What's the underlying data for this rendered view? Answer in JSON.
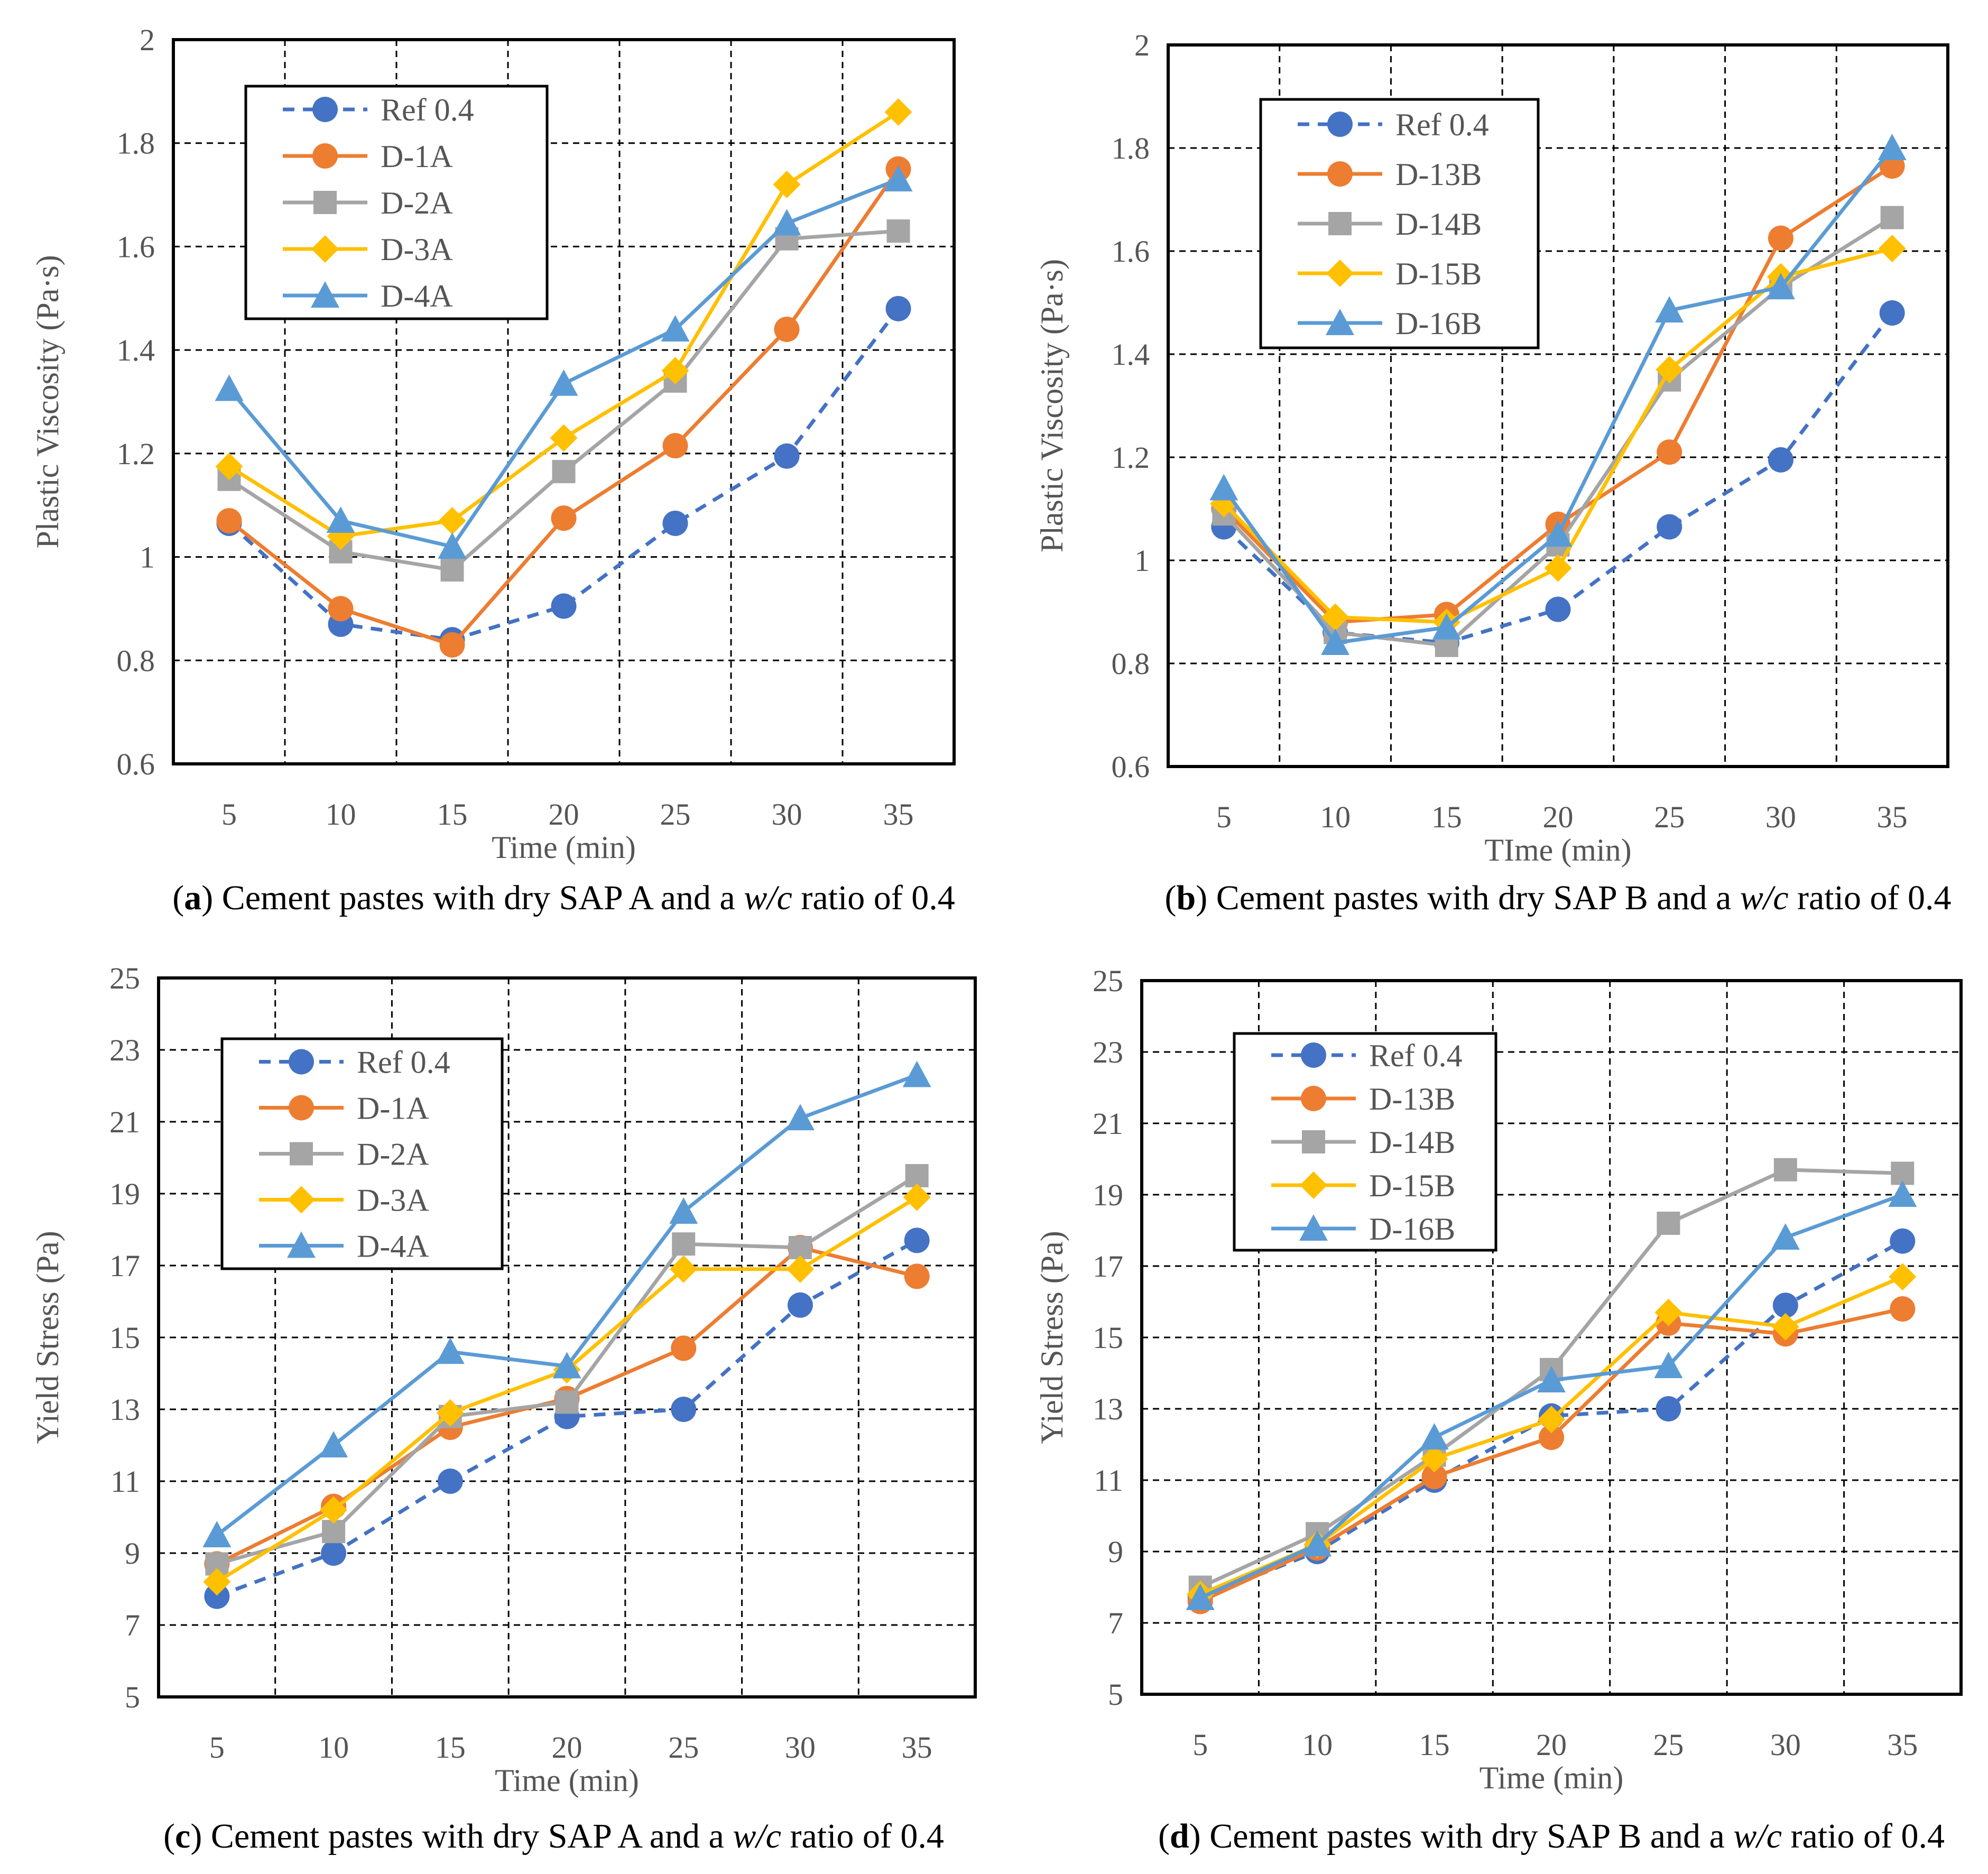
{
  "colors": {
    "ref": "#4472C4",
    "d1": "#ED7D31",
    "d2": "#A5A5A5",
    "d3": "#FFC000",
    "d4": "#5B9BD5"
  },
  "chart_data": [
    {
      "id": "a",
      "type": "line",
      "xlabel": "Time (min)",
      "ylabel": "Plastic Viscosity (Pa·s)",
      "categories": [
        "5",
        "10",
        "15",
        "20",
        "25",
        "30",
        "35"
      ],
      "ylim": [
        0.6,
        2.0
      ],
      "yticks": [
        "0.6",
        "0.8",
        "1",
        "1.2",
        "1.4",
        "1.6",
        "1.8",
        "2"
      ],
      "grid": true,
      "legend_position": "top-left",
      "series": [
        {
          "name": "Ref 0.4",
          "marker": "circle",
          "dashed": true,
          "values": [
            1.065,
            0.87,
            0.84,
            0.905,
            1.065,
            1.195,
            1.48
          ]
        },
        {
          "name": "D-1A",
          "marker": "circle",
          "dashed": false,
          "values": [
            1.07,
            0.9,
            0.83,
            1.075,
            1.215,
            1.44,
            1.75
          ]
        },
        {
          "name": "D-2A",
          "marker": "square",
          "dashed": false,
          "values": [
            1.15,
            1.01,
            0.975,
            1.165,
            1.34,
            1.615,
            1.63
          ]
        },
        {
          "name": "D-3A",
          "marker": "diamond",
          "dashed": false,
          "values": [
            1.175,
            1.04,
            1.07,
            1.23,
            1.36,
            1.72,
            1.86
          ]
        },
        {
          "name": "D-4A",
          "marker": "triangle",
          "dashed": false,
          "values": [
            1.325,
            1.07,
            1.02,
            1.335,
            1.44,
            1.645,
            1.73
          ]
        }
      ],
      "caption": {
        "label": "a",
        "pre": " Cement pastes with dry SAP A and a ",
        "ital": "w/c",
        "post": " ratio of 0.4"
      }
    },
    {
      "id": "b",
      "type": "line",
      "xlabel": "TIme (min)",
      "ylabel": "Plastic Viscosity (Pa·s)",
      "categories": [
        "5",
        "10",
        "15",
        "20",
        "25",
        "30",
        "35"
      ],
      "ylim": [
        0.6,
        2.0
      ],
      "yticks": [
        "0.6",
        "0.8",
        "1",
        "1.2",
        "1.4",
        "1.6",
        "1.8",
        "2"
      ],
      "grid": true,
      "legend_position": "top-left",
      "series": [
        {
          "name": "Ref 0.4",
          "marker": "circle",
          "dashed": true,
          "values": [
            1.065,
            0.86,
            0.84,
            0.905,
            1.065,
            1.195,
            1.48
          ]
        },
        {
          "name": "D-13B",
          "marker": "circle",
          "dashed": false,
          "values": [
            1.1,
            0.88,
            0.895,
            1.07,
            1.21,
            1.625,
            1.765
          ]
        },
        {
          "name": "D-14B",
          "marker": "square",
          "dashed": false,
          "values": [
            1.09,
            0.86,
            0.835,
            1.03,
            1.35,
            1.53,
            1.665
          ]
        },
        {
          "name": "D-15B",
          "marker": "diamond",
          "dashed": false,
          "values": [
            1.11,
            0.89,
            0.88,
            0.985,
            1.37,
            1.55,
            1.605
          ]
        },
        {
          "name": "D-16B",
          "marker": "triangle",
          "dashed": false,
          "values": [
            1.14,
            0.84,
            0.87,
            1.05,
            1.485,
            1.53,
            1.8
          ]
        }
      ],
      "caption": {
        "label": "b",
        "pre": " Cement pastes with dry SAP B and a ",
        "ital": "w/c",
        "post": " ratio of 0.4"
      }
    },
    {
      "id": "c",
      "type": "line",
      "xlabel": "Time (min)",
      "ylabel": "Yield Stress (Pa)",
      "categories": [
        "5",
        "10",
        "15",
        "20",
        "25",
        "30",
        "35"
      ],
      "ylim": [
        5,
        25
      ],
      "yticks": [
        "5",
        "7",
        "9",
        "11",
        "13",
        "15",
        "17",
        "19",
        "21",
        "23",
        "25"
      ],
      "grid": true,
      "legend_position": "top-left",
      "series": [
        {
          "name": "Ref 0.4",
          "marker": "circle",
          "dashed": true,
          "values": [
            7.8,
            9.0,
            11.0,
            12.8,
            13.0,
            15.9,
            17.7
          ]
        },
        {
          "name": "D-1A",
          "marker": "circle",
          "dashed": false,
          "values": [
            8.7,
            10.3,
            12.5,
            13.3,
            14.7,
            17.5,
            16.7
          ]
        },
        {
          "name": "D-2A",
          "marker": "square",
          "dashed": false,
          "values": [
            8.7,
            9.6,
            12.8,
            13.2,
            17.6,
            17.5,
            19.5
          ]
        },
        {
          "name": "D-3A",
          "marker": "diamond",
          "dashed": false,
          "values": [
            8.2,
            10.2,
            12.9,
            14.1,
            16.9,
            16.9,
            18.9
          ]
        },
        {
          "name": "D-4A",
          "marker": "triangle",
          "dashed": false,
          "values": [
            9.5,
            12.0,
            14.6,
            14.2,
            18.5,
            21.1,
            22.3
          ]
        }
      ],
      "caption": {
        "label": "c",
        "pre": " Cement pastes with dry SAP A and a ",
        "ital": "w/c",
        "post": " ratio of 0.4"
      }
    },
    {
      "id": "d",
      "type": "line",
      "xlabel": "Time (min)",
      "ylabel": "Yield Stress (Pa)",
      "categories": [
        "5",
        "10",
        "15",
        "20",
        "25",
        "30",
        "35"
      ],
      "ylim": [
        5,
        25
      ],
      "yticks": [
        "5",
        "7",
        "9",
        "11",
        "13",
        "15",
        "17",
        "19",
        "21",
        "23",
        "25"
      ],
      "grid": true,
      "legend_position": "top-left",
      "series": [
        {
          "name": "Ref 0.4",
          "marker": "circle",
          "dashed": true,
          "values": [
            7.7,
            9.0,
            11.0,
            12.8,
            13.0,
            15.9,
            17.7
          ]
        },
        {
          "name": "D-13B",
          "marker": "circle",
          "dashed": false,
          "values": [
            7.6,
            9.1,
            11.1,
            12.2,
            15.4,
            15.1,
            15.8
          ]
        },
        {
          "name": "D-14B",
          "marker": "square",
          "dashed": false,
          "values": [
            8.0,
            9.5,
            11.7,
            14.1,
            18.2,
            19.7,
            19.6
          ]
        },
        {
          "name": "D-15B",
          "marker": "diamond",
          "dashed": false,
          "values": [
            7.8,
            9.2,
            11.6,
            12.7,
            15.7,
            15.3,
            16.7
          ]
        },
        {
          "name": "D-16B",
          "marker": "triangle",
          "dashed": false,
          "values": [
            7.7,
            9.2,
            12.2,
            13.8,
            14.2,
            17.8,
            19.0
          ]
        }
      ],
      "caption": {
        "label": "d",
        "pre": " Cement pastes with dry SAP B and a ",
        "ital": "w/c",
        "post": " ratio of 0.4"
      }
    }
  ]
}
